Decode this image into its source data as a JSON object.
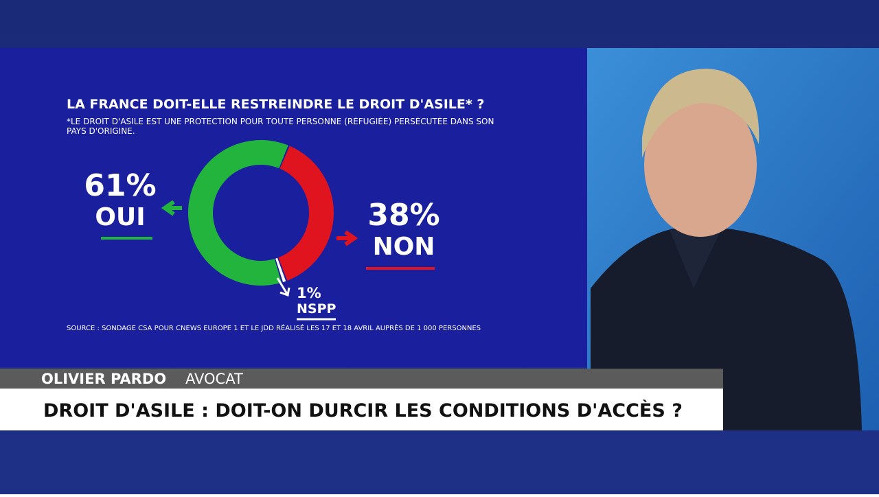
{
  "chart_data": {
    "type": "pie",
    "title": "LA FRANCE DOIT-ELLE RESTREINDRE LE DROIT D'ASILE* ?",
    "subtitle": "*LE DROIT D'ASILE EST UNE PROTECTION POUR TOUTE PERSONNE (RÉFUGIÉE) PERSÉCUTÉE DANS SON PAYS D'ORIGINE.",
    "categories": [
      "OUI",
      "NON",
      "NSPP"
    ],
    "values": [
      61,
      38,
      1
    ],
    "value_labels": [
      "61%",
      "38%",
      "1%"
    ],
    "colors": [
      "#22b43c",
      "#e0141e",
      "#ffffff"
    ],
    "source": "SOURCE : SONDAGE CSA POUR CNEWS EUROPE 1 ET LE JDD RÉALISÉ LES 17 ET 18 AVRIL AUPRÈS DE 1 000 PERSONNES"
  },
  "lower_third": {
    "name": "OLIVIER PARDO",
    "role": "AVOCAT",
    "headline": "DROIT D'ASILE : DOIT-ON DURCIR LES CONDITIONS D'ACCÈS ?"
  }
}
